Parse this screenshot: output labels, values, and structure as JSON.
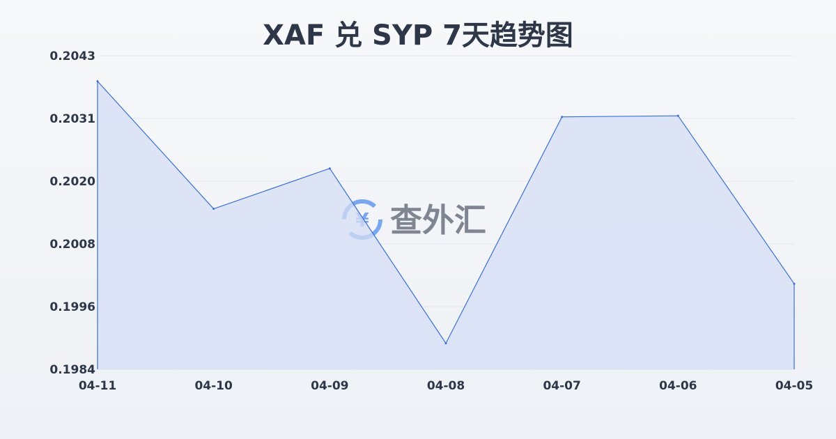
{
  "chart_data": {
    "type": "area",
    "title": "XAF 兑 SYP 7天趋势图",
    "xlabel": "",
    "ylabel": "",
    "categories": [
      "04-11",
      "04-10",
      "04-09",
      "04-08",
      "04-07",
      "04-06",
      "04-05"
    ],
    "values": [
      0.20382,
      0.20142,
      0.20218,
      0.19889,
      0.20315,
      0.20317,
      0.20001
    ],
    "yticks": [
      "0.2043",
      "0.2031",
      "0.2020",
      "0.2008",
      "0.1996",
      "0.1984"
    ],
    "ylim": [
      0.1984,
      0.2043
    ],
    "grid": true,
    "line_color": "#3b6fd4",
    "fill_color": "#d4def5"
  },
  "watermark": {
    "text": "查外汇",
    "icon": "yuen-exchange-icon",
    "color": "#7aa7f0"
  }
}
